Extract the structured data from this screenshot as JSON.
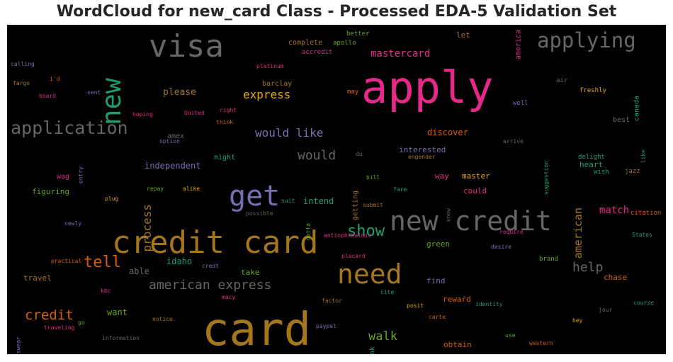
{
  "title": "WordCloud for new_card Class - Processed EDA-5 Validation Set",
  "chart_data": {
    "type": "wordcloud",
    "title": "WordCloud for new_card Class - Processed EDA-5 Validation Set",
    "background": "#000000",
    "palette": {
      "gray": "#666666",
      "orange": "#a6761d",
      "magenta": "#e7298a",
      "teal": "#1b9e77",
      "purple": "#7570b3",
      "green": "#66a61e",
      "rust": "#d95f02",
      "gold": "#e6ab02"
    },
    "words": [
      {
        "text": "card",
        "color": "orange",
        "vertical": false
      },
      {
        "text": "apply",
        "color": "magenta",
        "vertical": false
      },
      {
        "text": "credit card",
        "color": "orange",
        "vertical": false
      },
      {
        "text": "new credit",
        "color": "gray",
        "vertical": false
      },
      {
        "text": "visa",
        "color": "gray",
        "vertical": false
      },
      {
        "text": "get",
        "color": "purple",
        "vertical": false
      },
      {
        "text": "need",
        "color": "orange",
        "vertical": false
      },
      {
        "text": "new",
        "color": "teal",
        "vertical": true
      },
      {
        "text": "applying",
        "color": "gray",
        "vertical": false
      },
      {
        "text": "application",
        "color": "gray",
        "vertical": false
      },
      {
        "text": "show",
        "color": "teal",
        "vertical": false
      },
      {
        "text": "tell",
        "color": "rust",
        "vertical": false
      },
      {
        "text": "credit",
        "color": "rust",
        "vertical": false
      },
      {
        "text": "american express",
        "color": "gray",
        "vertical": false
      },
      {
        "text": "help",
        "color": "gray",
        "vertical": false
      },
      {
        "text": "walk",
        "color": "green",
        "vertical": false
      },
      {
        "text": "would",
        "color": "gray",
        "vertical": false
      },
      {
        "text": "would like",
        "color": "purple",
        "vertical": false
      },
      {
        "text": "express",
        "color": "gold",
        "vertical": false
      },
      {
        "text": "process",
        "color": "orange",
        "vertical": true
      },
      {
        "text": "american",
        "color": "orange",
        "vertical": true
      },
      {
        "text": "match",
        "color": "magenta",
        "vertical": false
      },
      {
        "text": "mastercard",
        "color": "magenta",
        "vertical": false
      },
      {
        "text": "please",
        "color": "orange",
        "vertical": false
      },
      {
        "text": "independent",
        "color": "purple",
        "vertical": false
      },
      {
        "text": "discover",
        "color": "rust",
        "vertical": false
      },
      {
        "text": "want",
        "color": "green",
        "vertical": false
      },
      {
        "text": "idaho",
        "color": "teal",
        "vertical": false
      },
      {
        "text": "able",
        "color": "gray",
        "vertical": false
      },
      {
        "text": "interested",
        "color": "purple",
        "vertical": false
      },
      {
        "text": "intend",
        "color": "teal",
        "vertical": false
      },
      {
        "text": "travel",
        "color": "orange",
        "vertical": false
      },
      {
        "text": "figuring",
        "color": "green",
        "vertical": false
      },
      {
        "text": "let",
        "color": "orange",
        "vertical": false
      },
      {
        "text": "chase",
        "color": "rust",
        "vertical": false
      },
      {
        "text": "obtain",
        "color": "rust",
        "vertical": false
      },
      {
        "text": "reward",
        "color": "rust",
        "vertical": false
      },
      {
        "text": "could",
        "color": "magenta",
        "vertical": false
      },
      {
        "text": "master",
        "color": "gold",
        "vertical": false
      },
      {
        "text": "way",
        "color": "magenta",
        "vertical": false
      },
      {
        "text": "green",
        "color": "green",
        "vertical": false
      },
      {
        "text": "find",
        "color": "purple",
        "vertical": false
      },
      {
        "text": "take",
        "color": "green",
        "vertical": false
      },
      {
        "text": "heart",
        "color": "teal",
        "vertical": false
      },
      {
        "text": "bank",
        "color": "teal",
        "vertical": true
      },
      {
        "text": "getting",
        "color": "orange",
        "vertical": true
      },
      {
        "text": "barclay",
        "color": "orange",
        "vertical": false
      },
      {
        "text": "complete",
        "color": "orange",
        "vertical": false
      },
      {
        "text": "might",
        "color": "teal",
        "vertical": false
      },
      {
        "text": "wag",
        "color": "magenta",
        "vertical": false
      },
      {
        "text": "best",
        "color": "gray",
        "vertical": false
      },
      {
        "text": "canada",
        "color": "teal",
        "vertical": true
      },
      {
        "text": "america",
        "color": "magenta",
        "vertical": true
      },
      {
        "text": "amex",
        "color": "gray",
        "vertical": false
      },
      {
        "text": "brand",
        "color": "green",
        "vertical": false
      },
      {
        "text": "citation",
        "color": "rust",
        "vertical": false
      },
      {
        "text": "jazz",
        "color": "orange",
        "vertical": false
      },
      {
        "text": "wish",
        "color": "teal",
        "vertical": false
      },
      {
        "text": "delight",
        "color": "teal",
        "vertical": false
      },
      {
        "text": "freshly",
        "color": "gold",
        "vertical": false
      },
      {
        "text": "air",
        "color": "gray",
        "vertical": false
      },
      {
        "text": "well",
        "color": "purple",
        "vertical": false
      },
      {
        "text": "may",
        "color": "rust",
        "vertical": false
      },
      {
        "text": "accredit",
        "color": "magenta",
        "vertical": false
      },
      {
        "text": "apollo",
        "color": "green",
        "vertical": false
      },
      {
        "text": "better",
        "color": "green",
        "vertical": false
      },
      {
        "text": "platinum",
        "color": "magenta",
        "vertical": false
      },
      {
        "text": "calling",
        "color": "purple",
        "vertical": false
      },
      {
        "text": "i'd",
        "color": "rust",
        "vertical": false
      },
      {
        "text": "fargo",
        "color": "orange",
        "vertical": false
      },
      {
        "text": "board",
        "color": "magenta",
        "vertical": false
      },
      {
        "text": "sent",
        "color": "purple",
        "vertical": false
      },
      {
        "text": "hoping",
        "color": "magenta",
        "vertical": false
      },
      {
        "text": "United",
        "color": "magenta",
        "vertical": false
      },
      {
        "text": "right",
        "color": "magenta",
        "vertical": false
      },
      {
        "text": "think",
        "color": "rust",
        "vertical": false
      },
      {
        "text": "option",
        "color": "purple",
        "vertical": false
      },
      {
        "text": "entry",
        "color": "purple",
        "vertical": true
      },
      {
        "text": "repay",
        "color": "green",
        "vertical": false
      },
      {
        "text": "alike",
        "color": "gold",
        "vertical": false
      },
      {
        "text": "plug",
        "color": "gold",
        "vertical": false
      },
      {
        "text": "suit",
        "color": "teal",
        "vertical": false
      },
      {
        "text": "possible",
        "color": "gray",
        "vertical": false
      },
      {
        "text": "gotta",
        "color": "green",
        "vertical": true
      },
      {
        "text": "du",
        "color": "gray",
        "vertical": false
      },
      {
        "text": "bill",
        "color": "green",
        "vertical": false
      },
      {
        "text": "fare",
        "color": "teal",
        "vertical": false
      },
      {
        "text": "engender",
        "color": "orange",
        "vertical": false
      },
      {
        "text": "submit",
        "color": "orange",
        "vertical": false
      },
      {
        "text": "know",
        "color": "gray",
        "vertical": true
      },
      {
        "text": "arrive",
        "color": "gray",
        "vertical": false
      },
      {
        "text": "suggestion",
        "color": "teal",
        "vertical": true
      },
      {
        "text": "like",
        "color": "teal",
        "vertical": true
      },
      {
        "text": "require",
        "color": "magenta",
        "vertical": false
      },
      {
        "text": "States",
        "color": "teal",
        "vertical": false
      },
      {
        "text": "desire",
        "color": "purple",
        "vertical": false
      },
      {
        "text": "antiophthalmic",
        "color": "magenta",
        "vertical": false
      },
      {
        "text": "placard",
        "color": "magenta",
        "vertical": false
      },
      {
        "text": "newly",
        "color": "purple",
        "vertical": false
      },
      {
        "text": "practical",
        "color": "rust",
        "vertical": false
      },
      {
        "text": "credt",
        "color": "purple",
        "vertical": false
      },
      {
        "text": "kbc",
        "color": "magenta",
        "vertical": false
      },
      {
        "text": "macy",
        "color": "magenta",
        "vertical": false
      },
      {
        "text": "cite",
        "color": "teal",
        "vertical": false
      },
      {
        "text": "factor",
        "color": "orange",
        "vertical": false
      },
      {
        "text": "posit",
        "color": "gold",
        "vertical": false
      },
      {
        "text": "identity",
        "color": "teal",
        "vertical": false
      },
      {
        "text": "course",
        "color": "teal",
        "vertical": false
      },
      {
        "text": "jour",
        "color": "gray",
        "vertical": false
      },
      {
        "text": "hey",
        "color": "gold",
        "vertical": false
      },
      {
        "text": "carte",
        "color": "rust",
        "vertical": false
      },
      {
        "text": "notice",
        "color": "orange",
        "vertical": false
      },
      {
        "text": "go",
        "color": "green",
        "vertical": false
      },
      {
        "text": "swear",
        "color": "purple",
        "vertical": true
      },
      {
        "text": "traveling",
        "color": "magenta",
        "vertical": false
      },
      {
        "text": "information",
        "color": "gray",
        "vertical": false
      },
      {
        "text": "paypal",
        "color": "purple",
        "vertical": false
      },
      {
        "text": "use",
        "color": "green",
        "vertical": false
      },
      {
        "text": "western",
        "color": "rust",
        "vertical": false
      }
    ]
  }
}
